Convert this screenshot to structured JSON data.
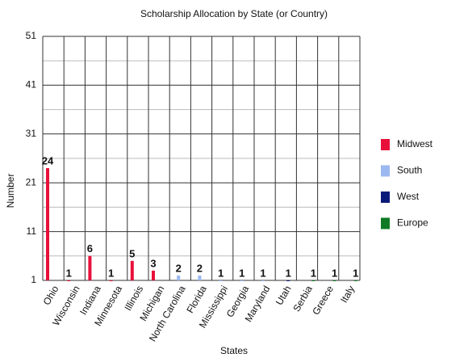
{
  "chart_data": {
    "type": "bar",
    "title": "Scholarship Allocation by State (or Country)",
    "x_label": "States",
    "y_label": "Number",
    "categories": [
      "Ohio",
      "Wisconsin",
      "Indiana",
      "Minnesota",
      "Illinois",
      "Michigan",
      "North Carolina",
      "Florida",
      "Mississippi",
      "Georgia",
      "Maryland",
      "Utah",
      "Serbia",
      "Greece",
      "Italy"
    ],
    "series": [
      {
        "name": "Midwest",
        "color": "#e8103a",
        "values": [
          24,
          1,
          6,
          1,
          5,
          3,
          null,
          null,
          null,
          null,
          null,
          null,
          null,
          null,
          null
        ]
      },
      {
        "name": "South",
        "color": "#9bb8f0",
        "values": [
          null,
          null,
          null,
          null,
          null,
          null,
          2,
          2,
          1,
          1,
          1,
          null,
          null,
          null,
          null
        ]
      },
      {
        "name": "West",
        "color": "#0a1a7a",
        "values": [
          null,
          null,
          null,
          null,
          null,
          null,
          null,
          null,
          null,
          null,
          null,
          1,
          null,
          null,
          null
        ]
      },
      {
        "name": "Europe",
        "color": "#0f7a23",
        "values": [
          null,
          null,
          null,
          null,
          null,
          null,
          null,
          null,
          null,
          null,
          null,
          null,
          1,
          1,
          1
        ]
      }
    ],
    "ylim": [
      1,
      51
    ],
    "yticks": [
      1,
      11,
      21,
      31,
      41,
      51
    ],
    "minor_yticks": [
      6,
      16,
      26,
      36,
      46
    ],
    "grid": true,
    "legend": "right"
  }
}
